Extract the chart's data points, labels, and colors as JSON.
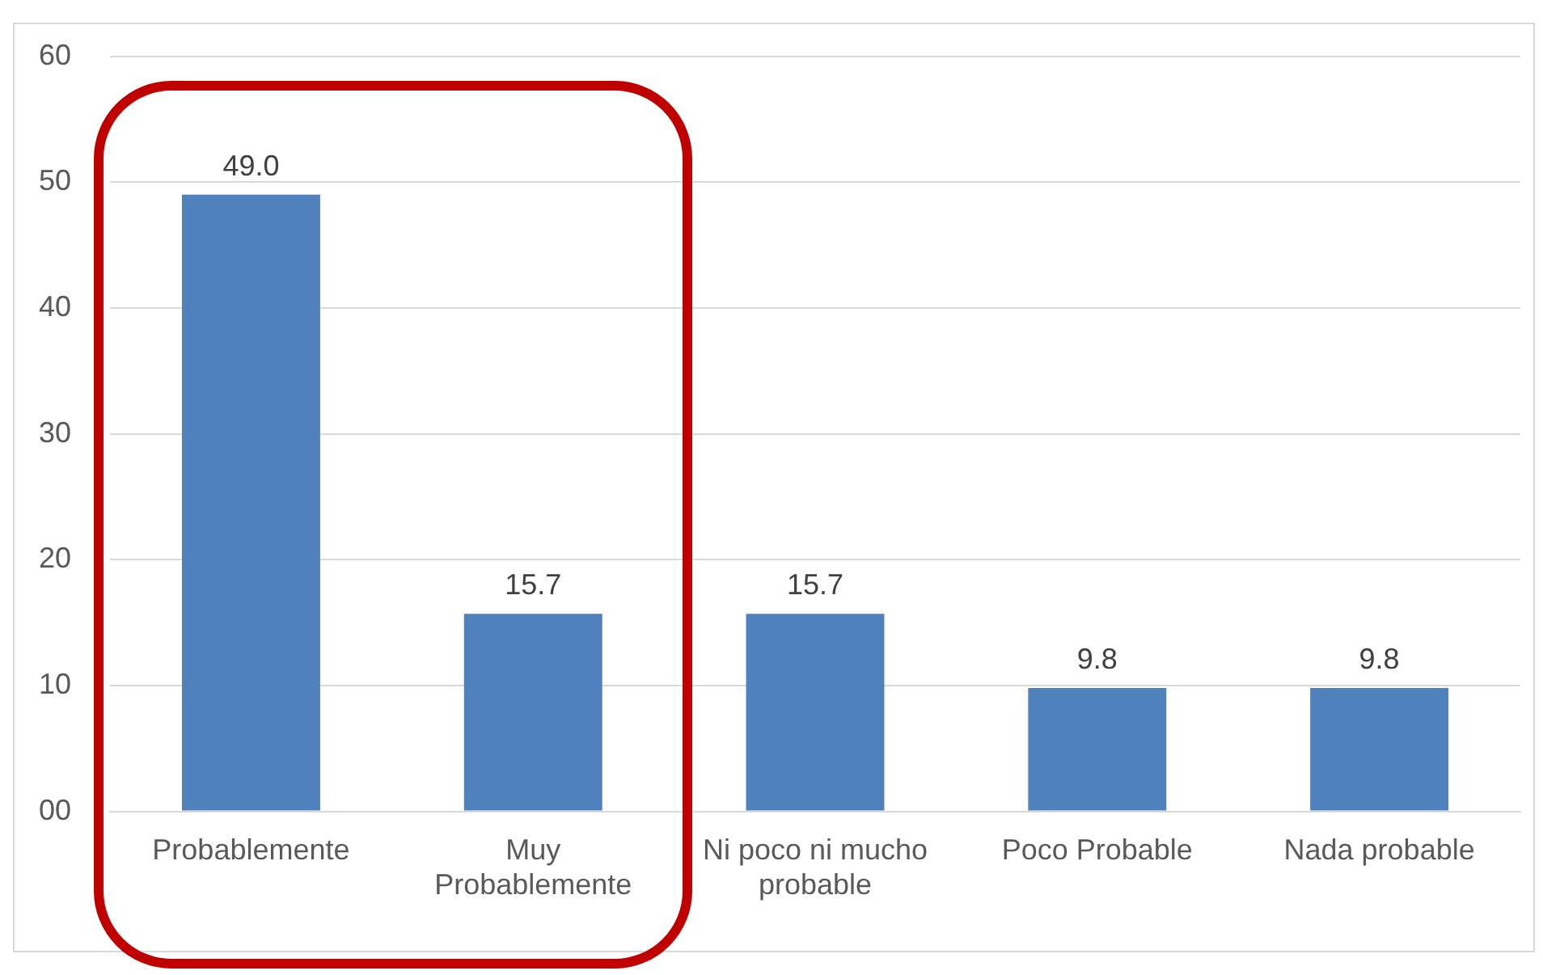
{
  "chart_data": {
    "type": "bar",
    "categories": [
      "Probablemente",
      "Muy Probablemente",
      "Ni poco ni mucho probable",
      "Poco Probable",
      "Nada probable"
    ],
    "values": [
      49.0,
      15.7,
      15.7,
      9.8,
      9.8
    ],
    "color": "#4f81bd",
    "ylim": [
      0,
      60
    ],
    "yticks": [
      {
        "value": 0,
        "label": "00"
      },
      10,
      20,
      30,
      40,
      50,
      60
    ],
    "grid": "y",
    "data_labels": true,
    "value_labels": [
      "49.0",
      "15.7",
      "15.7",
      "9.8",
      "9.8"
    ]
  }
}
